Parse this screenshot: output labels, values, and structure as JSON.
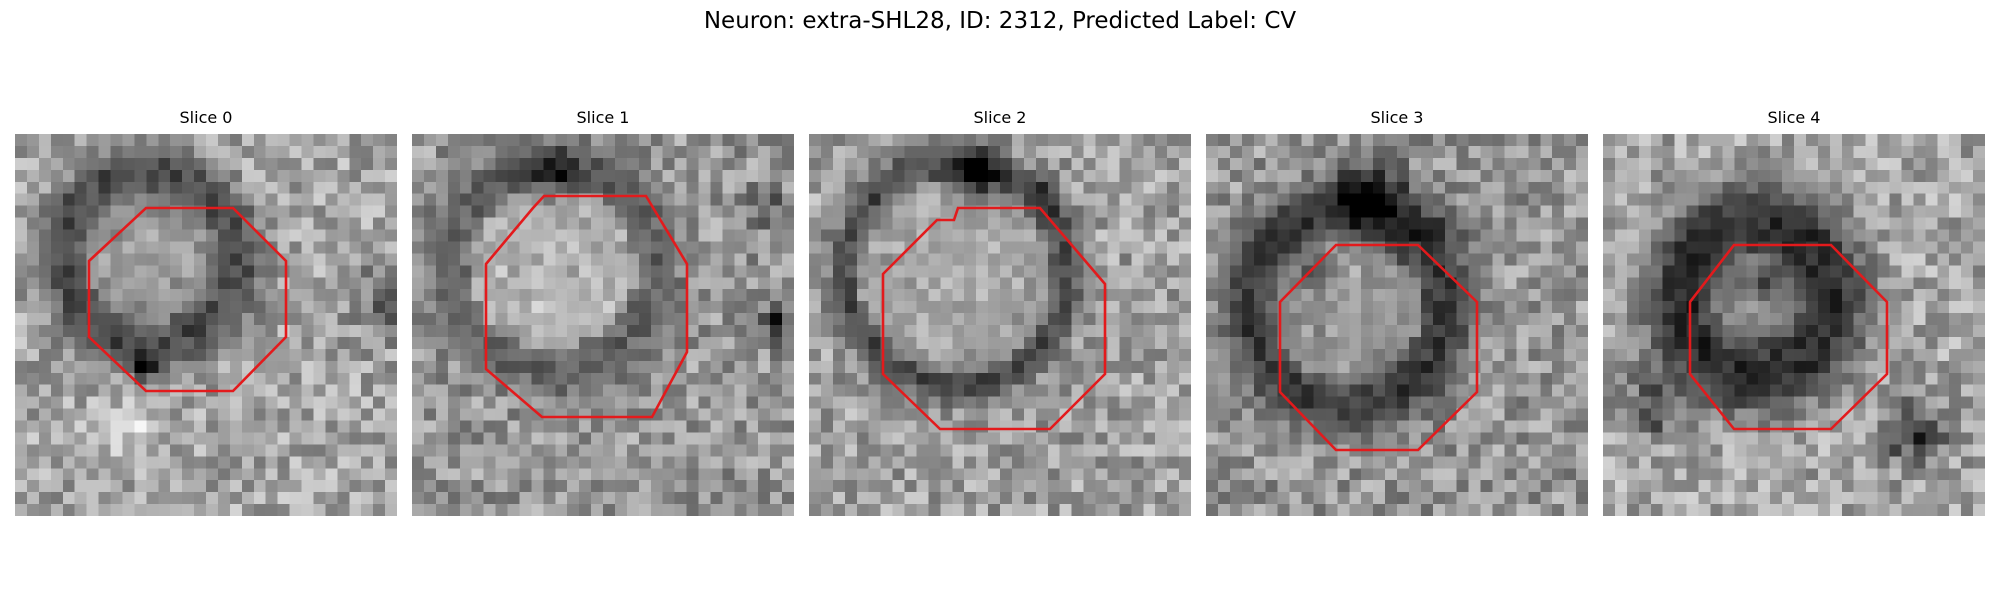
{
  "figure": {
    "title": "Neuron: extra-SHL28, ID: 2312, Predicted Label: CV"
  },
  "slices": [
    {
      "label": "Slice 0"
    },
    {
      "label": "Slice 1"
    },
    {
      "label": "Slice 2"
    },
    {
      "label": "Slice 3"
    },
    {
      "label": "Slice 4"
    }
  ],
  "colors": {
    "roi_outline": "#e31a1c",
    "colormap": "grayscale"
  }
}
